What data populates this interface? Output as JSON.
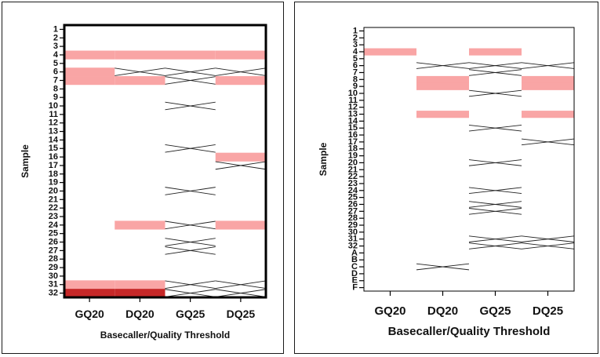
{
  "chart_data": [
    {
      "type": "heatmap",
      "xlabel": "Basecaller/Quality Threshold",
      "ylabel": "Sample",
      "x_categories": [
        "GQ20",
        "DQ20",
        "GQ25",
        "DQ25"
      ],
      "y_categories": [
        "1",
        "2",
        "3",
        "4",
        "5",
        "6",
        "7",
        "8",
        "9",
        "10",
        "11",
        "12",
        "13",
        "14",
        "15",
        "16",
        "17",
        "18",
        "19",
        "20",
        "21",
        "22",
        "23",
        "24",
        "25",
        "26",
        "27",
        "28",
        "29",
        "30",
        "31",
        "32"
      ],
      "cell_states": {
        "light": "#f9a5a5",
        "dark": "#c62828",
        "excluded": "cross"
      },
      "cells": [
        {
          "row": "4",
          "col": "GQ20",
          "state": "light"
        },
        {
          "row": "4",
          "col": "DQ20",
          "state": "light"
        },
        {
          "row": "4",
          "col": "GQ25",
          "state": "light"
        },
        {
          "row": "4",
          "col": "DQ25",
          "state": "light"
        },
        {
          "row": "6",
          "col": "GQ20",
          "state": "light"
        },
        {
          "row": "6",
          "col": "DQ20",
          "state": "excluded"
        },
        {
          "row": "6",
          "col": "GQ25",
          "state": "excluded"
        },
        {
          "row": "6",
          "col": "DQ25",
          "state": "excluded"
        },
        {
          "row": "7",
          "col": "GQ20",
          "state": "light"
        },
        {
          "row": "7",
          "col": "DQ20",
          "state": "light"
        },
        {
          "row": "7",
          "col": "GQ25",
          "state": "excluded"
        },
        {
          "row": "7",
          "col": "DQ25",
          "state": "light"
        },
        {
          "row": "10",
          "col": "GQ25",
          "state": "excluded"
        },
        {
          "row": "15",
          "col": "GQ25",
          "state": "excluded"
        },
        {
          "row": "16",
          "col": "DQ25",
          "state": "light"
        },
        {
          "row": "17",
          "col": "DQ25",
          "state": "excluded"
        },
        {
          "row": "20",
          "col": "GQ25",
          "state": "excluded"
        },
        {
          "row": "24",
          "col": "DQ20",
          "state": "light"
        },
        {
          "row": "24",
          "col": "GQ25",
          "state": "excluded"
        },
        {
          "row": "24",
          "col": "DQ25",
          "state": "light"
        },
        {
          "row": "26",
          "col": "GQ25",
          "state": "excluded"
        },
        {
          "row": "27",
          "col": "GQ25",
          "state": "excluded"
        },
        {
          "row": "31",
          "col": "GQ20",
          "state": "light"
        },
        {
          "row": "31",
          "col": "DQ20",
          "state": "light"
        },
        {
          "row": "31",
          "col": "GQ25",
          "state": "excluded"
        },
        {
          "row": "31",
          "col": "DQ25",
          "state": "excluded"
        },
        {
          "row": "32",
          "col": "GQ20",
          "state": "dark"
        },
        {
          "row": "32",
          "col": "DQ20",
          "state": "dark"
        },
        {
          "row": "32",
          "col": "GQ25",
          "state": "excluded"
        },
        {
          "row": "32",
          "col": "DQ25",
          "state": "excluded"
        }
      ]
    },
    {
      "type": "heatmap",
      "xlabel": "Basecaller/Quality Threshold",
      "ylabel": "Sample",
      "x_categories": [
        "GQ20",
        "DQ20",
        "GQ25",
        "DQ25"
      ],
      "y_categories": [
        "1",
        "2",
        "3",
        "4",
        "5",
        "6",
        "7",
        "8",
        "9",
        "10",
        "11",
        "12",
        "13",
        "14",
        "15",
        "16",
        "17",
        "18",
        "19",
        "20",
        "21",
        "22",
        "23",
        "24",
        "25",
        "26",
        "27",
        "28",
        "29",
        "30",
        "31",
        "32",
        "A",
        "B",
        "C",
        "D",
        "E",
        "F"
      ],
      "cell_states": {
        "light": "#f9a5a5",
        "excluded": "cross"
      },
      "cells": [
        {
          "row": "4",
          "col": "GQ20",
          "state": "light"
        },
        {
          "row": "4",
          "col": "GQ25",
          "state": "light"
        },
        {
          "row": "6",
          "col": "DQ20",
          "state": "excluded"
        },
        {
          "row": "6",
          "col": "GQ25",
          "state": "excluded"
        },
        {
          "row": "6",
          "col": "DQ25",
          "state": "excluded"
        },
        {
          "row": "7",
          "col": "GQ25",
          "state": "excluded"
        },
        {
          "row": "8",
          "col": "DQ20",
          "state": "light"
        },
        {
          "row": "8",
          "col": "DQ25",
          "state": "light"
        },
        {
          "row": "9",
          "col": "DQ20",
          "state": "light"
        },
        {
          "row": "9",
          "col": "DQ25",
          "state": "light"
        },
        {
          "row": "10",
          "col": "GQ25",
          "state": "excluded"
        },
        {
          "row": "13",
          "col": "DQ20",
          "state": "light"
        },
        {
          "row": "13",
          "col": "DQ25",
          "state": "light"
        },
        {
          "row": "15",
          "col": "GQ25",
          "state": "excluded"
        },
        {
          "row": "17",
          "col": "DQ25",
          "state": "excluded"
        },
        {
          "row": "20",
          "col": "GQ25",
          "state": "excluded"
        },
        {
          "row": "24",
          "col": "GQ25",
          "state": "excluded"
        },
        {
          "row": "26",
          "col": "GQ25",
          "state": "excluded"
        },
        {
          "row": "27",
          "col": "GQ25",
          "state": "excluded"
        },
        {
          "row": "31",
          "col": "GQ25",
          "state": "excluded"
        },
        {
          "row": "31",
          "col": "DQ25",
          "state": "excluded"
        },
        {
          "row": "32",
          "col": "GQ25",
          "state": "excluded"
        },
        {
          "row": "32",
          "col": "DQ25",
          "state": "excluded"
        },
        {
          "row": "C",
          "col": "DQ20",
          "state": "excluded"
        }
      ]
    }
  ]
}
